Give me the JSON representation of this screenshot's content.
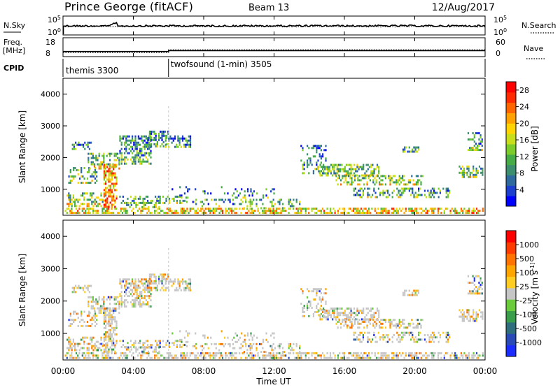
{
  "header": {
    "station": "Prince George (fitACF)",
    "beam": "Beam 13",
    "date": "12/Aug/2017"
  },
  "noise_panel": {
    "left_label": "N.Sky",
    "left_ticks": [
      "10^5",
      "10^0"
    ],
    "right_ticks": [
      "10^5",
      "10^0"
    ],
    "right_label": "N.Search"
  },
  "freq_panel": {
    "left_label_1": "Freq.",
    "left_label_2": "[MHz]",
    "left_ticks": [
      "18",
      "8"
    ],
    "right_ticks": [
      "60",
      "0"
    ],
    "right_label": "Nave"
  },
  "cpid_panel": {
    "label": "CPID",
    "modes": [
      {
        "name": "themis 3300",
        "start_hour": 0
      },
      {
        "name": "twofsound (1-min) 3505",
        "start_hour": 6
      }
    ]
  },
  "time_axis": {
    "xlabel": "Time UT",
    "ticks": [
      "00:00",
      "04:00",
      "08:00",
      "12:00",
      "16:00",
      "20:00",
      "00:00"
    ]
  },
  "colors": {
    "power_scale": [
      "#0000ff",
      "#1c3fd0",
      "#2f6a9f",
      "#3c8f6e",
      "#46ad46",
      "#7ccc2a",
      "#c9de1a",
      "#ffd400",
      "#ffa200",
      "#ff6600",
      "#ff2a00",
      "#ff0000"
    ],
    "velocity_scale": [
      "#1a2cff",
      "#2a4ab8",
      "#2f6e7c",
      "#399e4a",
      "#6acc3a",
      "#c6c6c6",
      "#ffcc22",
      "#ffa500",
      "#ff7300",
      "#ff3c00",
      "#ff0000"
    ]
  },
  "chart_data": [
    {
      "type": "line",
      "panel": "noise",
      "series": [
        {
          "name": "N.Sky",
          "style": "solid"
        },
        {
          "name": "N.Search",
          "style": "dotted"
        }
      ],
      "xlim": [
        0,
        24
      ]
    },
    {
      "type": "line",
      "panel": "frequency",
      "series": [
        {
          "name": "Freq.",
          "x": [
            0,
            6,
            6,
            24
          ],
          "y": [
            10.7,
            10.7,
            11.2,
            11.2
          ]
        },
        {
          "name": "Nave",
          "x": [
            0,
            6,
            6,
            24
          ],
          "y": [
            13,
            13,
            22,
            22
          ]
        }
      ],
      "xlim": [
        0,
        24
      ],
      "ylim_left": [
        8,
        18
      ],
      "ylim_right": [
        0,
        60
      ]
    },
    {
      "type": "heatmap",
      "title": "",
      "xlabel": "Time UT",
      "ylabel": "Slant Range [km]",
      "ylim": [
        180,
        4500
      ],
      "yticks": [
        "1000",
        "2000",
        "3000",
        "4000"
      ],
      "colorbar": {
        "label": "Power [dB]",
        "ticks": [
          "4",
          "8",
          "12",
          "16",
          "20",
          "24",
          "28"
        ],
        "range": [
          0,
          30
        ]
      }
    },
    {
      "type": "heatmap",
      "title": "",
      "xlabel": "Time UT",
      "ylabel": "Slant Range [km]",
      "ylim": [
        180,
        4500
      ],
      "yticks": [
        "1000",
        "2000",
        "3000",
        "4000"
      ],
      "colorbar": {
        "label": "Velocity [m s^-1]",
        "ticks": [
          "1000",
          "500",
          "100",
          "25",
          "-25",
          "-100",
          "-500",
          "-1000"
        ]
      }
    }
  ]
}
